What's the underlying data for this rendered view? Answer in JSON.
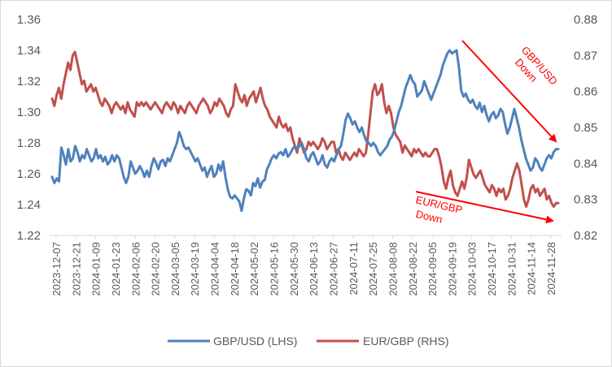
{
  "chart_data": {
    "type": "line",
    "title": "",
    "xlabel": "",
    "ylabel_left": "",
    "ylabel_right": "",
    "left_axis": {
      "range": [
        1.22,
        1.36
      ],
      "ticks": [
        "1.22",
        "1.24",
        "1.26",
        "1.28",
        "1.30",
        "1.32",
        "1.34",
        "1.36"
      ]
    },
    "right_axis": {
      "range": [
        0.82,
        0.88
      ],
      "ticks": [
        "0.82",
        "0.83",
        "0.84",
        "0.85",
        "0.86",
        "0.87",
        "0.88"
      ]
    },
    "x_tick_labels": [
      "2023-12-07",
      "2023-12-21",
      "2024-01-09",
      "2024-01-23",
      "2024-02-06",
      "2024-02-20",
      "2024-03-05",
      "2024-03-19",
      "2024-04-04",
      "2024-04-18",
      "2024-05-02",
      "2024-05-16",
      "2024-05-30",
      "2024-06-13",
      "2024-06-27",
      "2024-07-11",
      "2024-07-25",
      "2024-08-08",
      "2024-08-22",
      "2024-09-05",
      "2024-09-19",
      "2024-10-03",
      "2024-10-17",
      "2024-10-31",
      "2024-11-14",
      "2024-11-28"
    ],
    "grid": false,
    "legend_position": "bottom",
    "series": [
      {
        "name": "GBP/USD (LHS)",
        "axis": "left",
        "color": "#4f81bd",
        "values": [
          1.258,
          1.254,
          1.257,
          1.255,
          1.277,
          1.272,
          1.266,
          1.276,
          1.268,
          1.27,
          1.278,
          1.274,
          1.268,
          1.272,
          1.27,
          1.276,
          1.272,
          1.268,
          1.27,
          1.276,
          1.27,
          1.272,
          1.268,
          1.271,
          1.266,
          1.268,
          1.272,
          1.268,
          1.272,
          1.27,
          1.264,
          1.258,
          1.254,
          1.258,
          1.268,
          1.264,
          1.26,
          1.262,
          1.265,
          1.262,
          1.258,
          1.262,
          1.258,
          1.265,
          1.27,
          1.267,
          1.263,
          1.268,
          1.269,
          1.265,
          1.27,
          1.268,
          1.272,
          1.276,
          1.28,
          1.287,
          1.283,
          1.278,
          1.276,
          1.277,
          1.274,
          1.271,
          1.268,
          1.27,
          1.266,
          1.262,
          1.264,
          1.258,
          1.262,
          1.265,
          1.258,
          1.26,
          1.266,
          1.262,
          1.268,
          1.258,
          1.25,
          1.245,
          1.244,
          1.246,
          1.244,
          1.242,
          1.236,
          1.244,
          1.25,
          1.249,
          1.246,
          1.254,
          1.252,
          1.257,
          1.251,
          1.255,
          1.256,
          1.263,
          1.266,
          1.27,
          1.272,
          1.27,
          1.273,
          1.274,
          1.272,
          1.276,
          1.271,
          1.273,
          1.276,
          1.278,
          1.276,
          1.278,
          1.28,
          1.276,
          1.27,
          1.268,
          1.272,
          1.274,
          1.27,
          1.266,
          1.268,
          1.272,
          1.266,
          1.264,
          1.268,
          1.27,
          1.268,
          1.272,
          1.276,
          1.278,
          1.286,
          1.295,
          1.299,
          1.296,
          1.292,
          1.294,
          1.29,
          1.287,
          1.29,
          1.285,
          1.281,
          1.28,
          1.278,
          1.28,
          1.278,
          1.274,
          1.272,
          1.274,
          1.276,
          1.278,
          1.282,
          1.284,
          1.288,
          1.294,
          1.3,
          1.304,
          1.31,
          1.316,
          1.32,
          1.324,
          1.32,
          1.318,
          1.31,
          1.312,
          1.314,
          1.32,
          1.316,
          1.312,
          1.308,
          1.312,
          1.316,
          1.32,
          1.324,
          1.33,
          1.334,
          1.338,
          1.34,
          1.338,
          1.339,
          1.34,
          1.329,
          1.314,
          1.31,
          1.312,
          1.308,
          1.306,
          1.308,
          1.304,
          1.302,
          1.306,
          1.3,
          1.304,
          1.298,
          1.294,
          1.298,
          1.3,
          1.296,
          1.298,
          1.302,
          1.3,
          1.292,
          1.286,
          1.29,
          1.296,
          1.302,
          1.296,
          1.29,
          1.282,
          1.276,
          1.27,
          1.266,
          1.262,
          1.264,
          1.27,
          1.268,
          1.264,
          1.262,
          1.266,
          1.27,
          1.272,
          1.27,
          1.274,
          1.276,
          1.276
        ]
      },
      {
        "name": "EUR/GBP (RHS)",
        "axis": "right",
        "color": "#c0504d",
        "values": [
          0.858,
          0.856,
          0.859,
          0.861,
          0.858,
          0.862,
          0.865,
          0.868,
          0.866,
          0.87,
          0.871,
          0.868,
          0.865,
          0.862,
          0.863,
          0.86,
          0.861,
          0.862,
          0.86,
          0.861,
          0.859,
          0.857,
          0.856,
          0.858,
          0.857,
          0.856,
          0.854,
          0.856,
          0.857,
          0.856,
          0.855,
          0.856,
          0.854,
          0.857,
          0.855,
          0.854,
          0.853,
          0.857,
          0.856,
          0.857,
          0.856,
          0.857,
          0.856,
          0.855,
          0.856,
          0.857,
          0.856,
          0.855,
          0.854,
          0.856,
          0.857,
          0.856,
          0.855,
          0.857,
          0.856,
          0.854,
          0.856,
          0.855,
          0.854,
          0.856,
          0.857,
          0.856,
          0.855,
          0.854,
          0.856,
          0.857,
          0.858,
          0.857,
          0.856,
          0.854,
          0.855,
          0.857,
          0.856,
          0.858,
          0.857,
          0.856,
          0.854,
          0.853,
          0.855,
          0.856,
          0.862,
          0.86,
          0.858,
          0.857,
          0.859,
          0.856,
          0.858,
          0.859,
          0.86,
          0.857,
          0.859,
          0.861,
          0.858,
          0.856,
          0.855,
          0.853,
          0.852,
          0.851,
          0.85,
          0.853,
          0.851,
          0.85,
          0.851,
          0.849,
          0.85,
          0.847,
          0.845,
          0.843,
          0.847,
          0.845,
          0.843,
          0.844,
          0.846,
          0.845,
          0.846,
          0.845,
          0.844,
          0.845,
          0.847,
          0.846,
          0.844,
          0.845,
          0.846,
          0.846,
          0.843,
          0.844,
          0.842,
          0.841,
          0.843,
          0.842,
          0.841,
          0.842,
          0.843,
          0.842,
          0.844,
          0.843,
          0.842,
          0.843,
          0.848,
          0.854,
          0.86,
          0.862,
          0.859,
          0.86,
          0.862,
          0.857,
          0.854,
          0.856,
          0.854,
          0.85,
          0.848,
          0.847,
          0.846,
          0.843,
          0.845,
          0.844,
          0.843,
          0.842,
          0.844,
          0.843,
          0.844,
          0.843,
          0.842,
          0.843,
          0.842,
          0.842,
          0.843,
          0.844,
          0.844,
          0.842,
          0.839,
          0.835,
          0.833,
          0.836,
          0.838,
          0.834,
          0.832,
          0.831,
          0.833,
          0.835,
          0.833,
          0.836,
          0.841,
          0.839,
          0.837,
          0.836,
          0.837,
          0.838,
          0.836,
          0.834,
          0.833,
          0.832,
          0.834,
          0.833,
          0.831,
          0.833,
          0.832,
          0.833,
          0.83,
          0.831,
          0.833,
          0.836,
          0.838,
          0.84,
          0.838,
          0.834,
          0.83,
          0.828,
          0.83,
          0.833,
          0.834,
          0.832,
          0.833,
          0.831,
          0.832,
          0.833,
          0.83,
          0.831,
          0.829,
          0.828,
          0.829,
          0.829
        ]
      }
    ],
    "annotations": [
      {
        "id": "gbpusd",
        "lines": [
          "GBP/USD",
          "Down"
        ],
        "color": "#ff0000"
      },
      {
        "id": "eurgbp",
        "lines": [
          "EUR/GBP",
          "Down"
        ],
        "color": "#ff0000"
      }
    ]
  }
}
